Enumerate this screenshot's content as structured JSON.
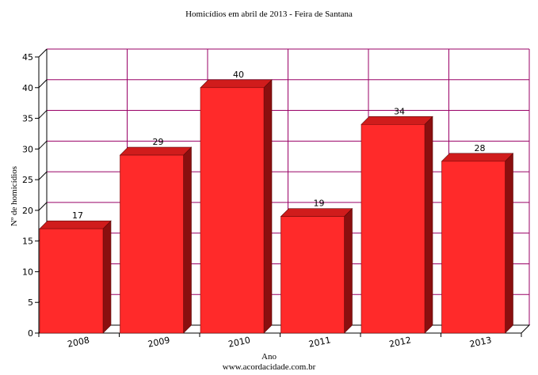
{
  "chart_data": {
    "type": "bar",
    "title": "Homicídios em abril de 2013 - Feira de Santana",
    "xlabel": "Ano",
    "ylabel": "Nº de homicídios",
    "categories": [
      "2008",
      "2009",
      "2010",
      "2011",
      "2012",
      "2013"
    ],
    "values": [
      17,
      29,
      40,
      19,
      34,
      28
    ],
    "data_labels": [
      "17",
      "29",
      "40",
      "19",
      "34",
      "28"
    ],
    "ylim": [
      0,
      45
    ],
    "yticks": [
      0,
      5,
      10,
      15,
      20,
      25,
      30,
      35,
      40,
      45
    ],
    "ytick_labels": [
      "0",
      "5",
      "10",
      "15",
      "20",
      "25",
      "30",
      "35",
      "40",
      "45"
    ],
    "grid": true,
    "style": "3d-bar",
    "colors": {
      "bar_front": "#ff2a2a",
      "bar_top": "#d01c1c",
      "bar_side": "#8a0f0f",
      "grid": "#990066",
      "axis": "#000000"
    }
  },
  "footer": "www.acordacidade.com.br"
}
